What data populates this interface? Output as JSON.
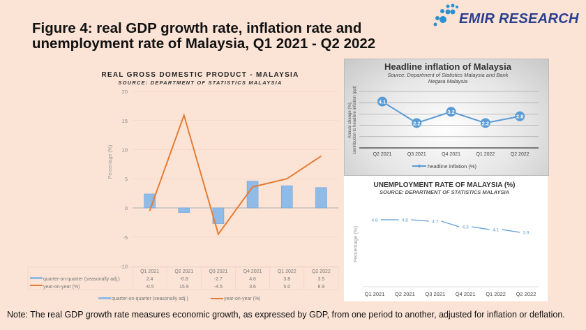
{
  "slide": {
    "title_line1": "Figure 4: real GDP growth rate, inflation rate and",
    "title_line2": "unemployment rate of Malaysia, Q1 2021 - Q2 2022",
    "logo_text": "EMIR RESEARCH",
    "note": "Note: The real GDP growth rate measures economic growth, as expressed by GDP, from one period to another, adjusted for inflation or deflation."
  },
  "colors": {
    "background": "#fbe4d6",
    "bar": "#8fbbe6",
    "line_orange": "#e57c33",
    "line_blue": "#5b9bd5",
    "logo": "#2b3f8f"
  },
  "chart_data": [
    {
      "type": "bar+line",
      "title": "REAL GROSS DOMESTIC PRODUCT - MALAYSIA",
      "subtitle": "SOURCE: DEPARTMENT OF STATISTICS MALAYSIA",
      "ylabel": "Percentage (%)",
      "ylim": [
        -10,
        20
      ],
      "yticks": [
        "20",
        "15",
        "10",
        "5",
        "0",
        "-5",
        "-10"
      ],
      "yticks_values": [
        20,
        15,
        10,
        5,
        0,
        -5,
        -10
      ],
      "categories": [
        "Q1 2021",
        "Q2 2021",
        "Q3 2021",
        "Q4 2021",
        "Q1 2022",
        "Q2 2022"
      ],
      "series": [
        {
          "name": "quarter-on-quarter (seasonally adj.)",
          "type": "bar",
          "values": [
            2.4,
            -0.8,
            -2.7,
            4.6,
            3.8,
            3.5
          ],
          "labels": [
            "2.4",
            "-0.8",
            "-2.7",
            "4.6",
            "3.8",
            "3.5"
          ]
        },
        {
          "name": "year-on-year (%)",
          "type": "line",
          "values": [
            -0.5,
            15.9,
            -4.5,
            3.6,
            5.0,
            8.9
          ],
          "labels": [
            "-0.5",
            "15.9",
            "-4.5",
            "3.6",
            "5.0",
            "8.9"
          ]
        }
      ],
      "grid": true,
      "legend": "bottom",
      "data_table": true
    },
    {
      "type": "line",
      "title": "Headline inflation of Malaysia",
      "subtitle": "Source: Department of Statistics Malaysia and Bank Negara Malaysia",
      "ylabel": "Annual change (%), contribution to headline inflation (ppt)",
      "ylim": [
        0,
        5
      ],
      "categories": [
        "Q2 2021",
        "Q3 2021",
        "Q4 2021",
        "Q1 2022",
        "Q2 2022"
      ],
      "series": [
        {
          "name": "headline inflation (%)",
          "values": [
            4.1,
            2.2,
            3.2,
            2.2,
            2.8
          ],
          "labels": [
            "4.1",
            "2.2",
            "3.2",
            "2.2",
            "2.8"
          ]
        }
      ],
      "grid": true,
      "legend": "bottom"
    },
    {
      "type": "line",
      "title": "UNEMPLOYMENT RATE OF MALAYSIA (%)",
      "subtitle": "SOURCE: DEPARTMENT OF STATISTICS MALAYSIA",
      "ylabel": "Percentage (%)",
      "ylim": [
        0,
        6
      ],
      "categories": [
        "Q1 2021",
        "Q2 2021",
        "Q3 2021",
        "Q4 2021",
        "Q1 2022",
        "Q2 2022"
      ],
      "series": [
        {
          "values": [
            4.8,
            4.8,
            4.7,
            4.3,
            4.1,
            3.9
          ],
          "labels": [
            "4.8",
            "4.8",
            "4.7",
            "4.3",
            "4.1",
            "3.9"
          ]
        }
      ],
      "grid": false
    }
  ]
}
